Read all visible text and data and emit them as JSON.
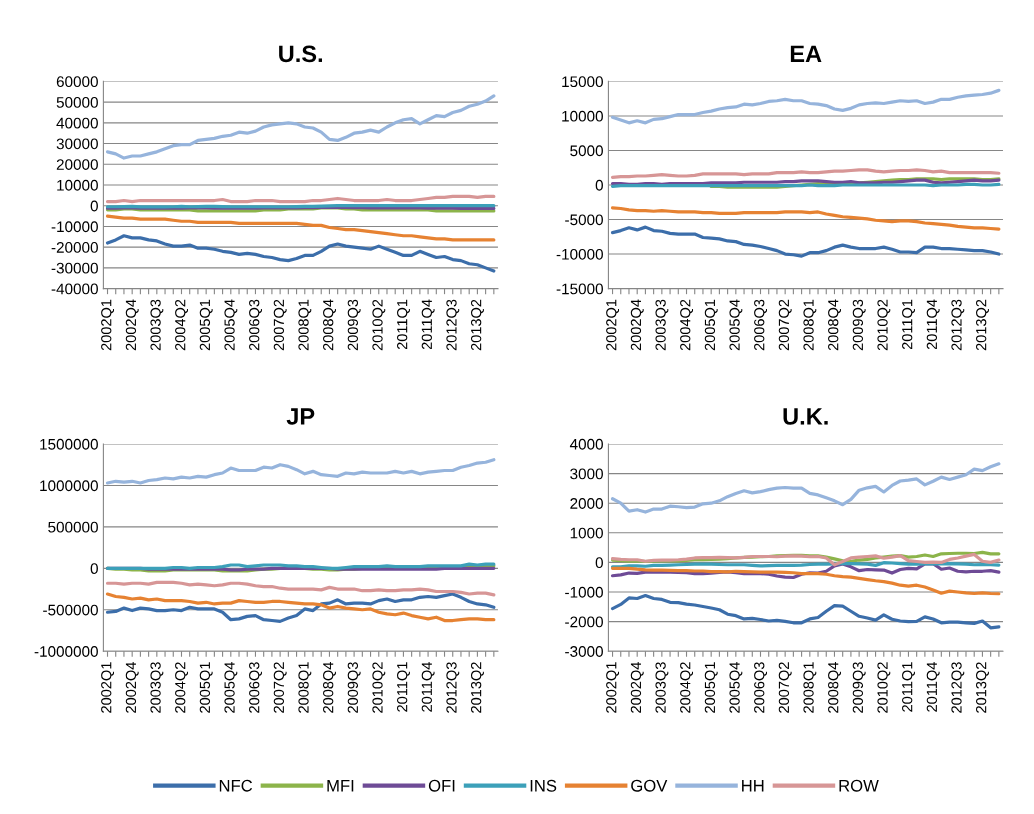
{
  "chart_data": [
    {
      "type": "line",
      "title": "U.S.",
      "categories": [
        "2002Q1",
        null,
        null,
        "2002Q4",
        null,
        null,
        "2003Q3",
        null,
        null,
        "2004Q2",
        null,
        null,
        "2005Q1",
        null,
        null,
        "2005Q4",
        null,
        null,
        "2006Q3",
        null,
        null,
        "2007Q2",
        null,
        null,
        "2008Q1",
        null,
        null,
        "2008Q4",
        null,
        null,
        "2009Q3",
        null,
        null,
        "2010Q2",
        null,
        null,
        "2011Q1",
        null,
        null,
        "2011Q4",
        null,
        null,
        "2012Q3",
        null,
        null,
        "2013Q2",
        null,
        null
      ],
      "ylim": [
        -40000,
        60000
      ],
      "yticks": [
        -40000,
        -30000,
        -20000,
        -10000,
        0,
        10000,
        20000,
        30000,
        40000,
        50000,
        60000
      ],
      "grid": "y",
      "legend": "bottom",
      "series": [
        {
          "name": "NFC",
          "color": "#3c6eaa",
          "values": [
            -18000,
            -16500,
            -14500,
            -15500,
            -15500,
            -16500,
            -17000,
            -18500,
            -19500,
            -19500,
            -19000,
            -20500,
            -20500,
            -21000,
            -22000,
            -22500,
            -23500,
            -23000,
            -23500,
            -24500,
            -25000,
            -26000,
            -26500,
            -25500,
            -24000,
            -24000,
            -22000,
            -19500,
            -18500,
            -19500,
            -20000,
            -20500,
            -21000,
            -19500,
            -21000,
            -22500,
            -24000,
            -24000,
            -22000,
            -23500,
            -25000,
            -24500,
            -26000,
            -26500,
            -28000,
            -28500,
            -30000,
            -31500
          ]
        },
        {
          "name": "MFI",
          "color": "#8cb44a",
          "values": [
            -2000,
            -2000,
            -1500,
            -1500,
            -2000,
            -2000,
            -2000,
            -2000,
            -2000,
            -2000,
            -2000,
            -2500,
            -2500,
            -2500,
            -2500,
            -2500,
            -2500,
            -2500,
            -2500,
            -2000,
            -2000,
            -2000,
            -1500,
            -1500,
            -1500,
            -1500,
            -1000,
            -1000,
            -1000,
            -1500,
            -1500,
            -2000,
            -2000,
            -2000,
            -2000,
            -2000,
            -2000,
            -2000,
            -2000,
            -2000,
            -2500,
            -2500,
            -2500,
            -2500,
            -2500,
            -2500,
            -2500,
            -2500
          ]
        },
        {
          "name": "OFI",
          "color": "#6e4b96",
          "values": [
            -1200,
            -1200,
            -1100,
            -1100,
            -1200,
            -1200,
            -1200,
            -1200,
            -1200,
            -1200,
            -1100,
            -1100,
            -1100,
            -1200,
            -1200,
            -1200,
            -1200,
            -1200,
            -1200,
            -1100,
            -1100,
            -1100,
            -1000,
            -1000,
            -900,
            -900,
            -800,
            -800,
            -700,
            -800,
            -900,
            -900,
            -1000,
            -1000,
            -1000,
            -1000,
            -1100,
            -1100,
            -1100,
            -1200,
            -1200,
            -1200,
            -1200,
            -1300,
            -1300,
            -1300,
            -1300,
            -1300
          ]
        },
        {
          "name": "INS",
          "color": "#3ca0b9",
          "values": [
            -500,
            -500,
            -400,
            -300,
            -600,
            -600,
            -600,
            -600,
            -500,
            -300,
            -500,
            -400,
            -300,
            -300,
            -400,
            -500,
            -500,
            -500,
            -500,
            -500,
            -500,
            -500,
            -500,
            -400,
            -300,
            -300,
            -200,
            -100,
            0,
            0,
            0,
            0,
            0,
            0,
            0,
            0,
            0,
            0,
            0,
            0,
            0,
            0,
            0,
            0,
            0,
            0,
            0,
            0
          ]
        },
        {
          "name": "GOV",
          "color": "#e68232",
          "values": [
            -5000,
            -5500,
            -6000,
            -6000,
            -6500,
            -6500,
            -6500,
            -6500,
            -7000,
            -7500,
            -7500,
            -8000,
            -8000,
            -8000,
            -8000,
            -8000,
            -8500,
            -8500,
            -8500,
            -8500,
            -8500,
            -8500,
            -8500,
            -8500,
            -9000,
            -9500,
            -9500,
            -10500,
            -11000,
            -11500,
            -11500,
            -12000,
            -12500,
            -13000,
            -13500,
            -14000,
            -14500,
            -14500,
            -15000,
            -15500,
            -16000,
            -16000,
            -16500,
            -16500,
            -16500,
            -16500,
            -16500,
            -16500
          ]
        },
        {
          "name": "HH",
          "color": "#96b4dc",
          "values": [
            26000,
            25000,
            23000,
            24000,
            24000,
            25000,
            26000,
            27500,
            29000,
            29500,
            29500,
            31500,
            32000,
            32500,
            33500,
            34000,
            35500,
            35000,
            36000,
            38000,
            39000,
            39500,
            40000,
            39500,
            38000,
            37500,
            35500,
            32000,
            31500,
            33000,
            35000,
            35500,
            36500,
            35500,
            38000,
            40000,
            41500,
            42000,
            39500,
            41500,
            43500,
            43000,
            45000,
            46000,
            48000,
            49000,
            50500,
            53000
          ]
        },
        {
          "name": "ROW",
          "color": "#d79696",
          "values": [
            2000,
            2000,
            2500,
            2000,
            2500,
            2500,
            2500,
            2500,
            2500,
            2500,
            2500,
            2500,
            2500,
            2500,
            3000,
            2000,
            2000,
            2000,
            2500,
            2500,
            2500,
            2000,
            2000,
            2000,
            2000,
            2500,
            2500,
            3000,
            3500,
            3000,
            2500,
            2500,
            2500,
            2500,
            3000,
            2500,
            2500,
            2500,
            3000,
            3500,
            4000,
            4000,
            4500,
            4500,
            4500,
            4000,
            4500,
            4500
          ]
        }
      ]
    },
    {
      "type": "line",
      "title": "EA",
      "categories": [
        "2002Q1",
        null,
        null,
        "2002Q4",
        null,
        null,
        "2003Q3",
        null,
        null,
        "2004Q2",
        null,
        null,
        "2005Q1",
        null,
        null,
        "2005Q4",
        null,
        null,
        "2006Q3",
        null,
        null,
        "2007Q2",
        null,
        null,
        "2008Q1",
        null,
        null,
        "2008Q4",
        null,
        null,
        "2009Q3",
        null,
        null,
        "2010Q2",
        null,
        null,
        "2011Q1",
        null,
        null,
        "2011Q4",
        null,
        null,
        "2012Q3",
        null,
        null,
        "2013Q2",
        null,
        null
      ],
      "ylim": [
        -15000,
        15000
      ],
      "yticks": [
        -15000,
        -10000,
        -5000,
        0,
        5000,
        10000,
        15000
      ],
      "grid": "y",
      "series": [
        {
          "color": "#3c6eaa",
          "values": [
            -6900,
            -6600,
            -6200,
            -6500,
            -6100,
            -6600,
            -6700,
            -7000,
            -7100,
            -7100,
            -7100,
            -7600,
            -7700,
            -7800,
            -8100,
            -8200,
            -8600,
            -8700,
            -8900,
            -9200,
            -9500,
            -10000,
            -10100,
            -10300,
            -9800,
            -9800,
            -9500,
            -9000,
            -8700,
            -9000,
            -9200,
            -9200,
            -9200,
            -9000,
            -9300,
            -9700,
            -9700,
            -9800,
            -9000,
            -9000,
            -9200,
            -9200,
            -9300,
            -9400,
            -9500,
            -9500,
            -9700,
            -10000
          ]
        },
        {
          "color": "#8cb44a",
          "values": [
            null,
            null,
            null,
            null,
            null,
            null,
            null,
            null,
            null,
            null,
            null,
            null,
            -200,
            -200,
            -300,
            -300,
            -300,
            -300,
            -300,
            -300,
            -300,
            -200,
            -100,
            0,
            100,
            200,
            100,
            100,
            200,
            300,
            300,
            400,
            500,
            600,
            700,
            800,
            800,
            900,
            900,
            900,
            800,
            900,
            900,
            900,
            900,
            800,
            800,
            900
          ]
        },
        {
          "color": "#6e4b96",
          "values": [
            200,
            200,
            100,
            100,
            200,
            200,
            100,
            200,
            200,
            200,
            200,
            200,
            300,
            300,
            300,
            300,
            400,
            400,
            400,
            400,
            400,
            500,
            500,
            600,
            600,
            600,
            500,
            400,
            400,
            500,
            300,
            300,
            300,
            400,
            400,
            500,
            600,
            700,
            700,
            400,
            300,
            400,
            500,
            600,
            700,
            600,
            600,
            700
          ]
        },
        {
          "color": "#3ca0b9",
          "values": [
            -200,
            -100,
            -100,
            -100,
            -100,
            -100,
            -100,
            -100,
            -100,
            -100,
            -100,
            -100,
            -100,
            -100,
            -100,
            -100,
            -100,
            -100,
            -100,
            -100,
            -100,
            -100,
            -100,
            -100,
            0,
            -100,
            -100,
            -100,
            0,
            0,
            0,
            0,
            0,
            0,
            0,
            0,
            0,
            0,
            0,
            -100,
            0,
            0,
            0,
            100,
            100,
            0,
            0,
            100
          ]
        },
        {
          "color": "#e68232",
          "values": [
            -3300,
            -3400,
            -3600,
            -3700,
            -3700,
            -3800,
            -3700,
            -3800,
            -3900,
            -3900,
            -3900,
            -4000,
            -4000,
            -4100,
            -4100,
            -4100,
            -4000,
            -4000,
            -4000,
            -4000,
            -4000,
            -3900,
            -3900,
            -3900,
            -4000,
            -3900,
            -4200,
            -4400,
            -4600,
            -4700,
            -4800,
            -4900,
            -5100,
            -5200,
            -5300,
            -5200,
            -5200,
            -5300,
            -5500,
            -5600,
            -5700,
            -5800,
            -6000,
            -6100,
            -6200,
            -6200,
            -6300,
            -6400
          ]
        },
        {
          "color": "#96b4dc",
          "values": [
            9800,
            9400,
            9000,
            9300,
            9000,
            9500,
            9600,
            9900,
            10200,
            10200,
            10200,
            10500,
            10700,
            11000,
            11200,
            11300,
            11700,
            11600,
            11800,
            12100,
            12200,
            12400,
            12200,
            12200,
            11800,
            11700,
            11500,
            11000,
            10800,
            11100,
            11600,
            11800,
            11900,
            11800,
            12000,
            12200,
            12100,
            12200,
            11800,
            12000,
            12400,
            12400,
            12700,
            12900,
            13000,
            13100,
            13300,
            13700
          ]
        },
        {
          "color": "#d79696",
          "values": [
            1100,
            1200,
            1200,
            1300,
            1300,
            1400,
            1500,
            1400,
            1300,
            1300,
            1400,
            1600,
            1600,
            1600,
            1600,
            1600,
            1500,
            1600,
            1600,
            1600,
            1800,
            1800,
            1800,
            1900,
            1800,
            1800,
            1900,
            2000,
            2000,
            2100,
            2200,
            2200,
            2000,
            1900,
            2000,
            2100,
            2100,
            2200,
            2100,
            1900,
            2000,
            1800,
            1800,
            1800,
            1800,
            1800,
            1800,
            1700
          ]
        }
      ]
    },
    {
      "type": "line",
      "title": "JP",
      "categories": [
        "2002Q1",
        null,
        null,
        "2002Q4",
        null,
        null,
        "2003Q3",
        null,
        null,
        "2004Q2",
        null,
        null,
        "2005Q1",
        null,
        null,
        "2005Q4",
        null,
        null,
        "2006Q3",
        null,
        null,
        "2007Q2",
        null,
        null,
        "2008Q1",
        null,
        null,
        "2008Q4",
        null,
        null,
        "2009Q3",
        null,
        null,
        "2010Q2",
        null,
        null,
        "2011Q1",
        null,
        null,
        "2011Q4",
        null,
        null,
        "2012Q3",
        null,
        null,
        "2013Q2",
        null,
        null
      ],
      "ylim": [
        -1000000,
        1500000
      ],
      "yticks": [
        -1000000,
        -500000,
        0,
        500000,
        1000000,
        1500000
      ],
      "grid": "y",
      "series": [
        {
          "color": "#3c6eaa",
          "values": [
            -530000,
            -520000,
            -480000,
            -510000,
            -480000,
            -490000,
            -510000,
            -510000,
            -500000,
            -510000,
            -470000,
            -490000,
            -490000,
            -490000,
            -530000,
            -620000,
            -610000,
            -580000,
            -570000,
            -620000,
            -630000,
            -640000,
            -600000,
            -570000,
            -490000,
            -510000,
            -430000,
            -420000,
            -380000,
            -430000,
            -420000,
            -420000,
            -430000,
            -390000,
            -370000,
            -400000,
            -380000,
            -380000,
            -350000,
            -340000,
            -350000,
            -330000,
            -310000,
            -350000,
            -400000,
            -430000,
            -440000,
            -470000
          ]
        },
        {
          "color": "#8cb44a",
          "values": [
            0,
            -10000,
            -10000,
            -20000,
            -20000,
            -30000,
            -30000,
            -30000,
            -20000,
            -20000,
            -20000,
            -20000,
            -20000,
            -20000,
            -30000,
            -30000,
            -30000,
            -30000,
            -20000,
            -10000,
            -10000,
            0,
            0,
            0,
            0,
            -10000,
            -10000,
            -20000,
            -20000,
            -10000,
            -10000,
            0,
            0,
            0,
            0,
            0,
            0,
            0,
            0,
            0,
            10000,
            10000,
            10000,
            20000,
            20000,
            20000,
            20000,
            30000
          ]
        },
        {
          "color": "#6e4b96",
          "values": [
            0,
            0,
            0,
            0,
            0,
            -10000,
            -10000,
            -10000,
            -10000,
            -10000,
            -10000,
            -10000,
            -10000,
            -10000,
            -10000,
            -20000,
            -20000,
            -10000,
            -10000,
            -10000,
            0,
            0,
            0,
            0,
            0,
            0,
            0,
            0,
            -10000,
            -10000,
            -10000,
            -10000,
            -10000,
            -10000,
            -10000,
            -10000,
            -10000,
            -10000,
            -10000,
            -10000,
            -10000,
            0,
            0,
            0,
            0,
            0,
            0,
            0
          ]
        },
        {
          "color": "#3ca0b9",
          "values": [
            0,
            0,
            0,
            0,
            0,
            0,
            0,
            0,
            10000,
            10000,
            0,
            10000,
            10000,
            10000,
            20000,
            40000,
            40000,
            20000,
            30000,
            40000,
            40000,
            40000,
            30000,
            30000,
            20000,
            20000,
            10000,
            0,
            0,
            10000,
            20000,
            20000,
            20000,
            20000,
            30000,
            20000,
            20000,
            20000,
            20000,
            30000,
            30000,
            30000,
            30000,
            30000,
            50000,
            40000,
            50000,
            50000
          ]
        },
        {
          "color": "#e68232",
          "values": [
            -310000,
            -340000,
            -350000,
            -370000,
            -360000,
            -380000,
            -370000,
            -390000,
            -390000,
            -390000,
            -400000,
            -420000,
            -410000,
            -430000,
            -420000,
            -420000,
            -390000,
            -400000,
            -410000,
            -410000,
            -400000,
            -400000,
            -410000,
            -420000,
            -430000,
            -430000,
            -440000,
            -480000,
            -460000,
            -480000,
            -490000,
            -500000,
            -490000,
            -530000,
            -550000,
            -560000,
            -540000,
            -570000,
            -590000,
            -610000,
            -590000,
            -630000,
            -630000,
            -620000,
            -610000,
            -610000,
            -620000,
            -620000
          ]
        },
        {
          "color": "#96b4dc",
          "values": [
            1030000,
            1050000,
            1040000,
            1050000,
            1030000,
            1060000,
            1070000,
            1090000,
            1080000,
            1100000,
            1090000,
            1110000,
            1100000,
            1130000,
            1150000,
            1210000,
            1180000,
            1180000,
            1180000,
            1220000,
            1210000,
            1250000,
            1230000,
            1190000,
            1140000,
            1170000,
            1130000,
            1120000,
            1110000,
            1150000,
            1140000,
            1160000,
            1150000,
            1150000,
            1150000,
            1170000,
            1150000,
            1170000,
            1140000,
            1160000,
            1170000,
            1180000,
            1180000,
            1220000,
            1240000,
            1270000,
            1280000,
            1310000
          ]
        },
        {
          "color": "#d79696",
          "values": [
            -180000,
            -180000,
            -190000,
            -180000,
            -180000,
            -190000,
            -170000,
            -170000,
            -170000,
            -180000,
            -200000,
            -190000,
            -200000,
            -210000,
            -200000,
            -180000,
            -180000,
            -190000,
            -210000,
            -220000,
            -220000,
            -240000,
            -250000,
            -250000,
            -250000,
            -250000,
            -260000,
            -230000,
            -250000,
            -250000,
            -250000,
            -270000,
            -270000,
            -260000,
            -270000,
            -270000,
            -260000,
            -260000,
            -250000,
            -260000,
            -280000,
            -280000,
            -280000,
            -290000,
            -310000,
            -300000,
            -300000,
            -320000
          ]
        }
      ]
    },
    {
      "type": "line",
      "title": "U.K.",
      "categories": [
        "2002Q1",
        null,
        null,
        "2002Q4",
        null,
        null,
        "2003Q3",
        null,
        null,
        "2004Q2",
        null,
        null,
        "2005Q1",
        null,
        null,
        "2005Q4",
        null,
        null,
        "2006Q3",
        null,
        null,
        "2007Q2",
        null,
        null,
        "2008Q1",
        null,
        null,
        "2008Q4",
        null,
        null,
        "2009Q3",
        null,
        null,
        "2010Q2",
        null,
        null,
        "2011Q1",
        null,
        null,
        "2011Q4",
        null,
        null,
        "2012Q3",
        null,
        null,
        "2013Q2",
        null,
        null
      ],
      "ylim": [
        -3000,
        4000
      ],
      "yticks": [
        -3000,
        -2000,
        -1000,
        0,
        1000,
        2000,
        3000,
        4000
      ],
      "grid": "y",
      "series": [
        {
          "color": "#3c6eaa",
          "values": [
            -1560,
            -1420,
            -1200,
            -1220,
            -1120,
            -1220,
            -1250,
            -1350,
            -1360,
            -1410,
            -1440,
            -1490,
            -1540,
            -1600,
            -1750,
            -1800,
            -1910,
            -1890,
            -1930,
            -1980,
            -1960,
            -1990,
            -2040,
            -2040,
            -1910,
            -1860,
            -1650,
            -1460,
            -1480,
            -1650,
            -1820,
            -1880,
            -1950,
            -1770,
            -1920,
            -1980,
            -2000,
            -1990,
            -1840,
            -1910,
            -2040,
            -2020,
            -2020,
            -2040,
            -2060,
            -1980,
            -2210,
            -2180
          ]
        },
        {
          "color": "#8cb44a",
          "values": [
            80,
            60,
            40,
            50,
            30,
            40,
            50,
            60,
            50,
            70,
            90,
            90,
            100,
            110,
            130,
            150,
            170,
            180,
            190,
            200,
            220,
            230,
            240,
            240,
            220,
            220,
            180,
            120,
            50,
            40,
            80,
            100,
            150,
            180,
            210,
            230,
            180,
            200,
            250,
            200,
            290,
            300,
            310,
            310,
            300,
            340,
            290,
            290
          ]
        },
        {
          "color": "#6e4b96",
          "values": [
            -450,
            -420,
            -360,
            -370,
            -330,
            -330,
            -330,
            -330,
            -340,
            -350,
            -380,
            -380,
            -360,
            -340,
            -320,
            -350,
            -380,
            -380,
            -380,
            -400,
            -460,
            -500,
            -510,
            -400,
            -350,
            -360,
            -300,
            -120,
            -50,
            -150,
            -280,
            -240,
            -250,
            -260,
            -360,
            -240,
            -200,
            -220,
            -50,
            -40,
            -230,
            -190,
            -300,
            -320,
            -300,
            -300,
            -280,
            -330
          ]
        },
        {
          "color": "#3ca0b9",
          "values": [
            -150,
            -150,
            -120,
            -120,
            -130,
            -100,
            -100,
            -90,
            -80,
            -70,
            -60,
            -60,
            -60,
            -70,
            -80,
            -80,
            -80,
            -100,
            -120,
            -110,
            -100,
            -100,
            -100,
            -90,
            -70,
            -60,
            -60,
            -50,
            -30,
            -40,
            -50,
            -60,
            -100,
            -10,
            -20,
            -40,
            -60,
            -60,
            -50,
            -50,
            -50,
            -40,
            -50,
            -60,
            -80,
            -70,
            -80,
            -90
          ]
        },
        {
          "color": "#e68232",
          "values": [
            -200,
            -200,
            -200,
            -230,
            -250,
            -260,
            -260,
            -270,
            -280,
            -280,
            -290,
            -290,
            -310,
            -310,
            -320,
            -300,
            -310,
            -320,
            -330,
            -330,
            -330,
            -340,
            -350,
            -380,
            -380,
            -380,
            -400,
            -450,
            -480,
            -500,
            -540,
            -580,
            -620,
            -650,
            -700,
            -770,
            -800,
            -770,
            -830,
            -930,
            -1040,
            -970,
            -1000,
            -1030,
            -1050,
            -1030,
            -1050,
            -1060
          ]
        },
        {
          "color": "#96b4dc",
          "values": [
            2150,
            2000,
            1730,
            1780,
            1700,
            1800,
            1800,
            1900,
            1880,
            1850,
            1870,
            1980,
            2000,
            2080,
            2220,
            2330,
            2420,
            2350,
            2390,
            2460,
            2510,
            2530,
            2510,
            2510,
            2330,
            2280,
            2180,
            2080,
            1950,
            2130,
            2440,
            2520,
            2570,
            2380,
            2600,
            2750,
            2780,
            2820,
            2620,
            2740,
            2880,
            2800,
            2880,
            2960,
            3150,
            3100,
            3230,
            3330
          ]
        },
        {
          "color": "#d79696",
          "values": [
            130,
            100,
            90,
            90,
            40,
            70,
            80,
            80,
            90,
            110,
            150,
            160,
            160,
            170,
            160,
            150,
            170,
            200,
            200,
            200,
            190,
            210,
            220,
            210,
            190,
            200,
            150,
            -80,
            30,
            150,
            180,
            200,
            220,
            140,
            180,
            230,
            60,
            30,
            0,
            10,
            0,
            100,
            150,
            210,
            270,
            40,
            0,
            80
          ]
        }
      ]
    }
  ]
}
